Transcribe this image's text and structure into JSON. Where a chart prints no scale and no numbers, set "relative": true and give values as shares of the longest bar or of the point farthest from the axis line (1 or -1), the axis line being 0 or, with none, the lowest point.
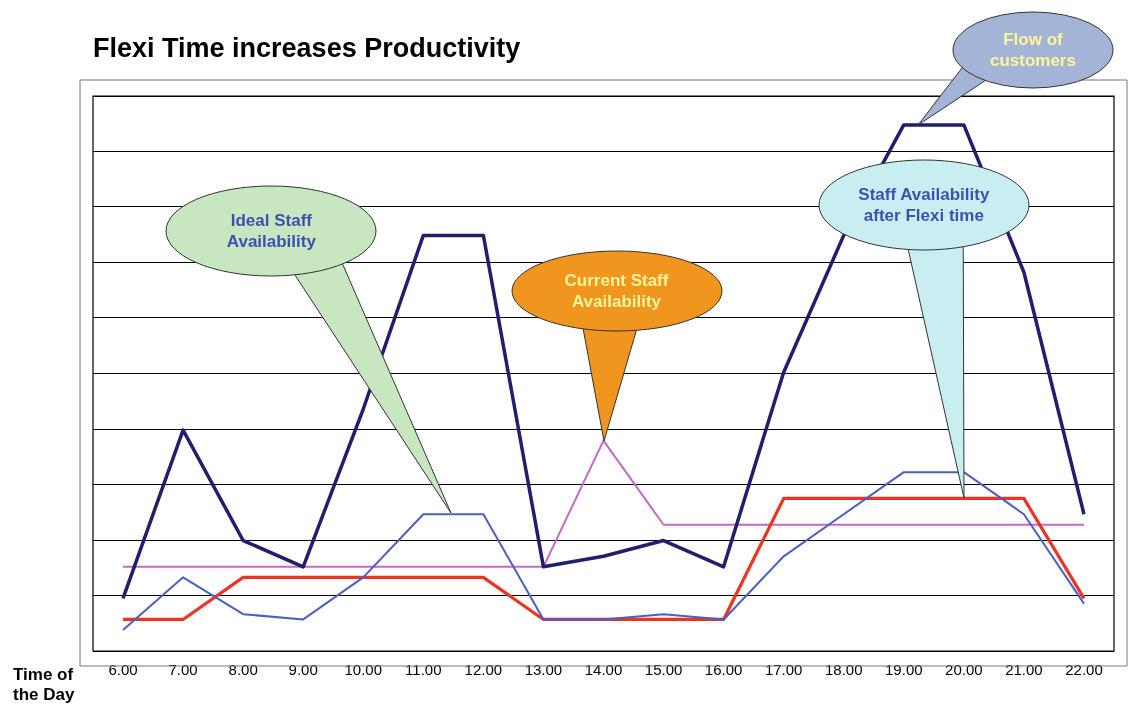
{
  "chart_data": {
    "type": "line",
    "title": "Flexi Time increases Productivity",
    "xlabel": "Time of the Day",
    "relative": true,
    "grid": "y",
    "legend": false,
    "marker": "none",
    "line_style": "solid",
    "categories": [
      "6.00",
      "7.00",
      "8.00",
      "9.00",
      "10.00",
      "11.00",
      "12.00",
      "13.00",
      "14.00",
      "15.00",
      "16.00",
      "17.00",
      "18.00",
      "19.00",
      "20.00",
      "21.00",
      "22.00"
    ],
    "series": [
      {
        "color": "#1f1f6e",
        "values": [
          0.1,
          0.42,
          0.21,
          0.16,
          0.46,
          0.79,
          0.79,
          0.16,
          0.18,
          0.21,
          0.16,
          0.53,
          0.79,
          1,
          1,
          0.72,
          0.26
        ]
      },
      {
        "color": "#4a5fc1",
        "values": [
          0.04,
          0.14,
          0.07,
          0.06,
          0.14,
          0.26,
          0.26,
          0.06,
          0.06,
          0.07,
          0.06,
          0.18,
          0.26,
          0.34,
          0.34,
          0.26,
          0.09
        ]
      },
      {
        "color": "#ee3322",
        "values": [
          0.06,
          0.06,
          0.14,
          0.14,
          0.14,
          0.14,
          0.14,
          0.06,
          0.06,
          0.06,
          0.06,
          0.29,
          0.29,
          0.29,
          0.29,
          0.29,
          0.1
        ]
      },
      {
        "color": "#c46ac4",
        "values": [
          0.16,
          0.16,
          0.16,
          0.16,
          0.16,
          0.16,
          0.16,
          0.16,
          0.4,
          0.24,
          0.24,
          0.24,
          0.24,
          0.24,
          0.24,
          0.24,
          0.24
        ]
      }
    ],
    "annotations": [
      "Flow of customers",
      "Ideal Staff Availability",
      {
        "text": "Current Staff Availability",
        "x": "14.00",
        "y": 0.4
      },
      {
        "text": "Staff Availability after Flexi time",
        "x": "20.00",
        "y": 0.29
      }
    ]
  }
}
